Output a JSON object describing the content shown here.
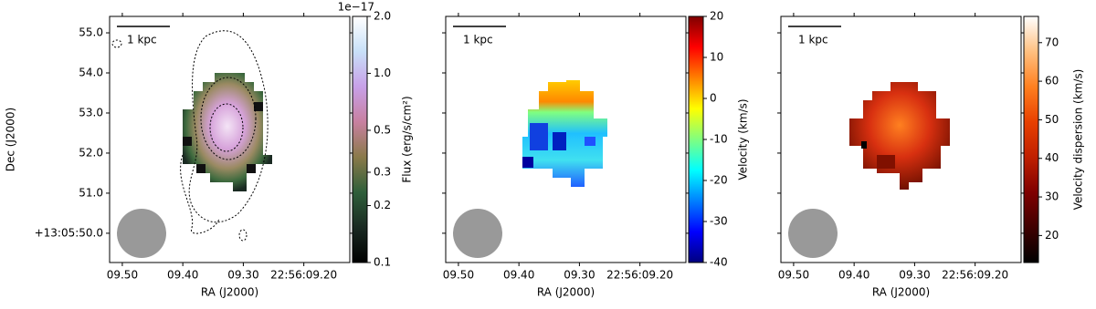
{
  "chart_data": [
    {
      "type": "image",
      "xlabel": "RA (J2000)",
      "ylabel": "Dec (J2000)",
      "scale_bar": "1 kpc",
      "xlim": [
        9.521,
        9.124
      ],
      "ylim": [
        49.27,
        55.41
      ],
      "xticks": [
        {
          "value": 9.5,
          "label": "09.50"
        },
        {
          "value": 9.4,
          "label": "09.40"
        },
        {
          "value": 9.3,
          "label": "09.30"
        },
        {
          "value": 9.2,
          "label": "22:56:09.20"
        }
      ],
      "yticks": [
        {
          "value": 55,
          "label": "55.0"
        },
        {
          "value": 54,
          "label": "54.0"
        },
        {
          "value": 53,
          "label": "53.0"
        },
        {
          "value": 52,
          "label": "52.0"
        },
        {
          "value": 51,
          "label": "51.0"
        },
        {
          "value": 50,
          "label": "+13:05:50.0"
        }
      ],
      "colorbar": {
        "label": "Flux (erg/s/cm²)",
        "offset_text": "1e−17",
        "scale": "log",
        "cmap": "cubehelix",
        "clim": [
          0.1,
          2.0
        ],
        "ticks": [
          {
            "value": 2.0,
            "label": "2.0"
          },
          {
            "value": 1.0,
            "label": "1.0"
          },
          0.5,
          0.3,
          0.2,
          0.1
        ]
      }
    },
    {
      "type": "image",
      "xlabel": "RA (J2000)",
      "scale_bar": "1 kpc",
      "xlim": [
        9.521,
        9.124
      ],
      "ylim": [
        49.27,
        55.41
      ],
      "xticks": [
        {
          "value": 9.5,
          "label": "09.50"
        },
        {
          "value": 9.4,
          "label": "09.40"
        },
        {
          "value": 9.3,
          "label": "09.30"
        },
        {
          "value": 9.2,
          "label": "22:56:09.20"
        }
      ],
      "yticks": [
        55,
        54,
        53,
        52,
        51,
        50
      ],
      "colorbar": {
        "label": "Velocity (km/s)",
        "scale": "linear",
        "cmap": "jet",
        "clim": [
          -40,
          20
        ],
        "ticks": [
          20,
          10,
          0,
          -10,
          -20,
          -30,
          -40
        ]
      }
    },
    {
      "type": "image",
      "xlabel": "RA (J2000)",
      "scale_bar": "1 kpc",
      "xlim": [
        9.521,
        9.124
      ],
      "ylim": [
        49.27,
        55.41
      ],
      "xticks": [
        {
          "value": 9.5,
          "label": "09.50"
        },
        {
          "value": 9.4,
          "label": "09.40"
        },
        {
          "value": 9.3,
          "label": "09.30"
        },
        {
          "value": 9.2,
          "label": "22:56:09.20"
        }
      ],
      "yticks": [
        55,
        54,
        53,
        52,
        51,
        50
      ],
      "colorbar": {
        "label": "Velocity dispersion (km/s)",
        "scale": "linear",
        "cmap": "heat",
        "clim": [
          13,
          76.8
        ],
        "ticks": [
          70,
          60,
          50,
          40,
          30,
          20
        ]
      }
    }
  ]
}
